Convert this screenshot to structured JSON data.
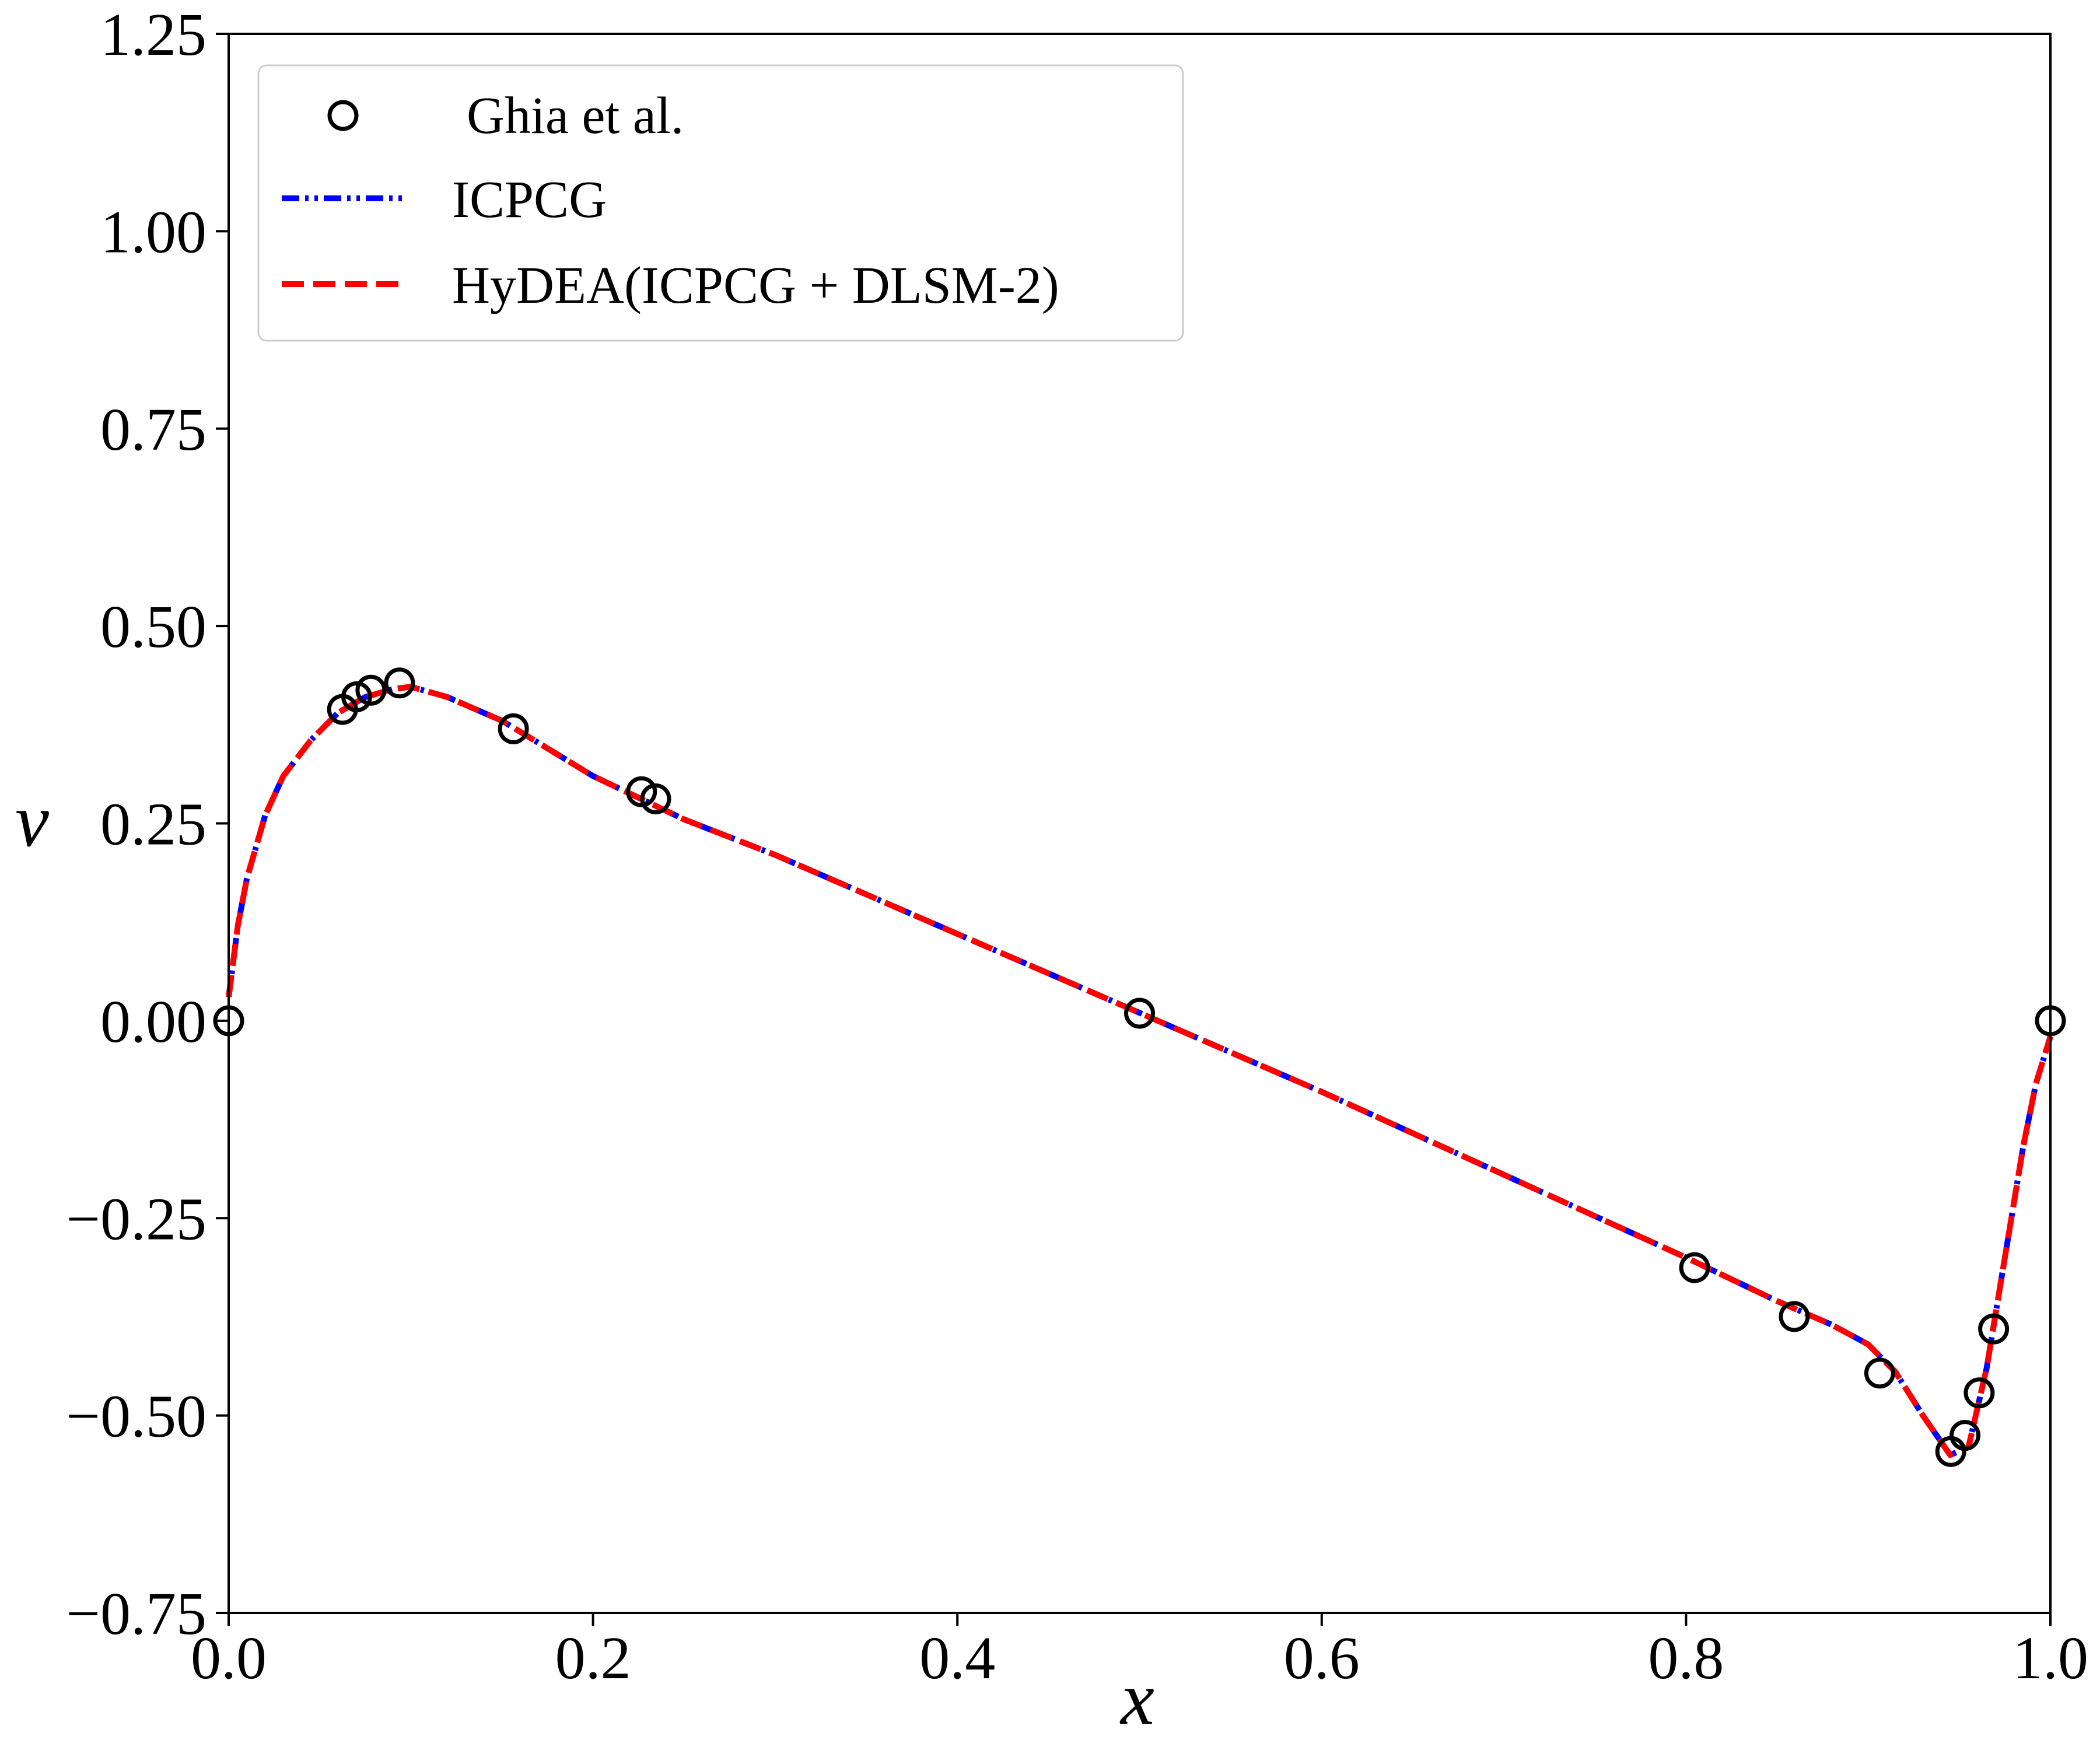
{
  "chart_data": {
    "type": "line",
    "xlabel": "x",
    "ylabel": "v",
    "xlim": [
      0.0,
      1.0
    ],
    "ylim": [
      -0.75,
      1.25
    ],
    "x_ticks": [
      "0.0",
      "0.2",
      "0.4",
      "0.6",
      "0.8",
      "1.0"
    ],
    "y_ticks": [
      "−0.75",
      "−0.50",
      "−0.25",
      "0.00",
      "0.25",
      "0.50",
      "0.75",
      "1.00",
      "1.25"
    ],
    "grid": false,
    "legend_position": "top-left",
    "series": [
      {
        "name": "Ghia et al.",
        "style": "markers",
        "marker": "open-circle",
        "color": "#000000",
        "x": [
          0.0,
          0.0625,
          0.0703,
          0.0781,
          0.0938,
          0.1563,
          0.2266,
          0.2344,
          0.5,
          0.8047,
          0.8594,
          0.9063,
          0.9453,
          0.9531,
          0.9609,
          0.9688,
          1.0
        ],
        "y": [
          0.0,
          0.3944,
          0.4103,
          0.4187,
          0.4278,
          0.3698,
          0.2901,
          0.281,
          0.0095,
          -0.3127,
          -0.3746,
          -0.4463,
          -0.5456,
          -0.5251,
          -0.4713,
          -0.3904,
          0.0
        ]
      },
      {
        "name": "ICPCG",
        "style": "dash-dot-dot",
        "color": "#0000ff",
        "x": [
          0.0,
          0.005,
          0.01,
          0.02,
          0.03,
          0.045,
          0.06,
          0.075,
          0.09,
          0.1,
          0.12,
          0.15,
          0.2,
          0.25,
          0.3,
          0.4,
          0.5,
          0.6,
          0.7,
          0.8,
          0.85,
          0.88,
          0.9,
          0.915,
          0.93,
          0.945,
          0.955,
          0.965,
          0.975,
          0.985,
          0.992,
          1.0
        ],
        "y": [
          0.03,
          0.12,
          0.18,
          0.26,
          0.31,
          0.355,
          0.39,
          0.41,
          0.42,
          0.423,
          0.41,
          0.38,
          0.31,
          0.255,
          0.21,
          0.11,
          0.01,
          -0.09,
          -0.195,
          -0.3,
          -0.355,
          -0.385,
          -0.41,
          -0.445,
          -0.5,
          -0.55,
          -0.54,
          -0.44,
          -0.3,
          -0.16,
          -0.08,
          -0.02
        ]
      },
      {
        "name": "HyDEA(ICPCG + DLSM-2)",
        "style": "dashed",
        "color": "#ff0000",
        "x": [
          0.0,
          0.005,
          0.01,
          0.02,
          0.03,
          0.045,
          0.06,
          0.075,
          0.09,
          0.1,
          0.12,
          0.15,
          0.2,
          0.25,
          0.3,
          0.4,
          0.5,
          0.6,
          0.7,
          0.8,
          0.85,
          0.88,
          0.9,
          0.915,
          0.93,
          0.945,
          0.955,
          0.965,
          0.975,
          0.985,
          0.992,
          1.0
        ],
        "y": [
          0.03,
          0.12,
          0.18,
          0.26,
          0.31,
          0.355,
          0.39,
          0.41,
          0.42,
          0.423,
          0.41,
          0.38,
          0.31,
          0.255,
          0.21,
          0.11,
          0.01,
          -0.09,
          -0.195,
          -0.3,
          -0.355,
          -0.385,
          -0.41,
          -0.445,
          -0.5,
          -0.55,
          -0.54,
          -0.44,
          -0.3,
          -0.16,
          -0.08,
          -0.02
        ]
      }
    ]
  }
}
